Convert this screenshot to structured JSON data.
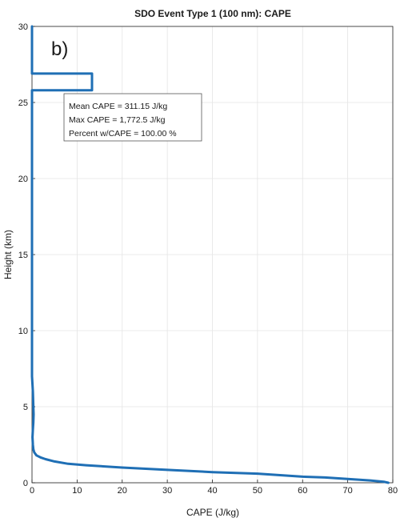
{
  "chart_data": {
    "type": "line",
    "title": "SDO Event Type 1 (100 nm): CAPE",
    "panel_label": "b)",
    "xlabel": "CAPE (J/kg)",
    "ylabel": "Height (km)",
    "xlim": [
      0,
      80
    ],
    "ylim": [
      0,
      30
    ],
    "xticks": [
      0,
      10,
      20,
      30,
      40,
      50,
      60,
      70,
      80
    ],
    "yticks": [
      0,
      5,
      10,
      15,
      20,
      25,
      30
    ],
    "grid": true,
    "line_color": "#1f6fb5",
    "annotation": [
      "Mean CAPE = 311.15 J/kg",
      "Max CAPE = 1,772.5 J/kg",
      "Percent w/CAPE = 100.00 %"
    ],
    "series": [
      {
        "x": [
          0,
          0,
          13.3,
          13.3,
          0,
          0,
          0.2,
          0.3,
          0.35,
          0.3,
          0.2,
          0.1,
          0.2,
          0.3,
          0.5,
          1,
          2,
          3,
          5,
          8,
          12,
          20,
          30,
          40,
          50,
          55,
          60,
          65,
          70,
          75,
          78,
          79
        ],
        "y": [
          30,
          26.9,
          26.9,
          25.8,
          25.8,
          7.0,
          6.0,
          5.0,
          4.5,
          4.0,
          3.5,
          3.0,
          2.5,
          2.2,
          2.0,
          1.8,
          1.65,
          1.55,
          1.4,
          1.25,
          1.15,
          1.0,
          0.85,
          0.7,
          0.6,
          0.5,
          0.4,
          0.35,
          0.25,
          0.15,
          0.07,
          0
        ]
      }
    ]
  }
}
